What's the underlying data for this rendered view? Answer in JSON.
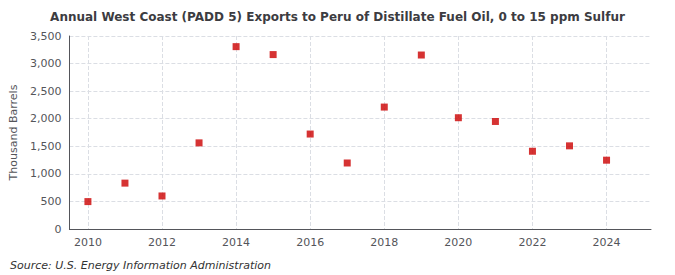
{
  "chart_data": {
    "type": "scatter",
    "title": "Annual West Coast (PADD 5) Exports to Peru of Distillate Fuel Oil, 0 to 15 ppm Sulfur",
    "ylabel": "Thousand Barrels",
    "annotations": [
      "Source: U.S. Energy Information Administration"
    ],
    "x": [
      2010,
      2011,
      2012,
      2013,
      2014,
      2015,
      2016,
      2017,
      2018,
      2019,
      2020,
      2021,
      2022,
      2023,
      2024
    ],
    "values": [
      497,
      832,
      599,
      1562,
      3307,
      3163,
      1722,
      1197,
      2211,
      3155,
      2018,
      1950,
      1410,
      1508,
      1248
    ],
    "color": "#cc0000",
    "marker": "square",
    "xlim": [
      2009.5,
      2025.2
    ],
    "xticks": [
      2010,
      2012,
      2014,
      2016,
      2018,
      2020,
      2022,
      2024
    ],
    "ylim": [
      0,
      3500
    ],
    "yticks": [
      0,
      500,
      {
        "value": 1000,
        "label": "1,000"
      },
      {
        "value": 1500,
        "label": "1,500"
      },
      {
        "value": 2000,
        "label": "2,000"
      },
      {
        "value": 2500,
        "label": "2,500"
      },
      {
        "value": 3000,
        "label": "3,000"
      },
      {
        "value": 3500,
        "label": "3,500"
      }
    ],
    "grid": true
  }
}
